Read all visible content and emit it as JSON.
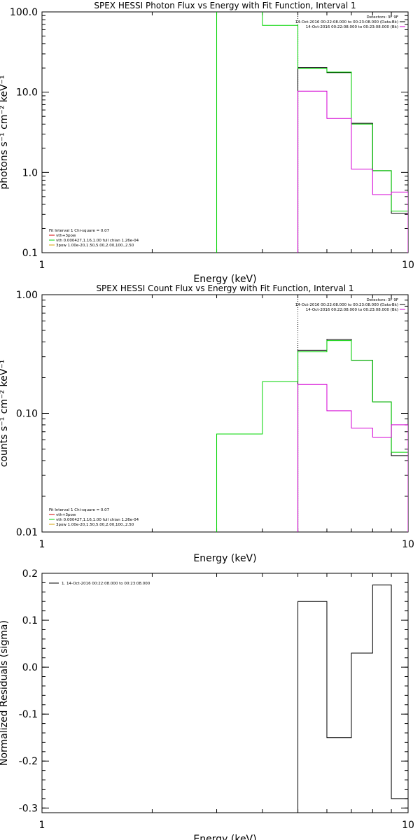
{
  "chart_data": [
    {
      "type": "line",
      "title": "SPEX HESSI Photon Flux vs Energy with Fit Function, Interval 1",
      "xlabel": "Energy (keV)",
      "ylabel": "photons s⁻¹ cm⁻² keV⁻¹",
      "xscale": "log",
      "yscale": "log",
      "xlim": [
        1,
        10
      ],
      "ylim": [
        0.1,
        100
      ],
      "xticks": [
        "1",
        "10"
      ],
      "yticks": [
        "0.1",
        "1.0",
        "10.0",
        "100.0"
      ],
      "info_text": [
        "Detectors: 3F 9F",
        "14-Oct-2016 00:22:08.000 to 00:23:08.000 (Data-Bk)",
        "14-Oct-2016 00:22:08.000 to 00:23:08.000 (Bk)"
      ],
      "fit_text": [
        "Fit Interval 1    Chi-square = 0.07",
        "vth+3pow",
        "vth 0.000427,1.16,1.00   full chian 1.26e-04",
        "3pow 1.00e-20,1.50,5.00,2.00,100.,2.50"
      ],
      "vline_x": 5.0,
      "series": [
        {
          "name": "vth+3pow",
          "color": "#000000",
          "x": [
            3.0,
            4.0,
            5.0,
            6.0,
            7.0,
            8.0,
            9.0,
            10.0
          ],
          "y": [
            null,
            null,
            20.2,
            17.5,
            4.1,
            1.05,
            0.31,
            0.29
          ]
        },
        {
          "name": "vth",
          "color": "#00d400",
          "x": [
            3.0,
            4.0,
            5.0,
            6.0,
            7.0,
            8.0,
            9.0,
            10.0
          ],
          "y": [
            400,
            68,
            19.8,
            17.8,
            4.0,
            1.05,
            0.33,
            0.3
          ]
        },
        {
          "name": "(Bk)",
          "color": "#d400d4",
          "x": [
            3.0,
            4.0,
            5.0,
            6.0,
            7.0,
            8.0,
            9.0,
            10.0
          ],
          "y": [
            null,
            null,
            10.3,
            4.7,
            1.1,
            0.53,
            0.57,
            0.57
          ]
        }
      ]
    },
    {
      "type": "line",
      "title": "SPEX HESSI Count Flux vs Energy with Fit Function, Interval 1",
      "xlabel": "Energy (keV)",
      "ylabel": "counts s⁻¹ cm⁻² keV⁻¹",
      "xscale": "log",
      "yscale": "log",
      "xlim": [
        1,
        10
      ],
      "ylim": [
        0.01,
        1.0
      ],
      "xticks": [
        "1",
        "10"
      ],
      "yticks": [
        "0.01",
        "0.10",
        "1.00"
      ],
      "info_text": [
        "Detectors: 3F 9F",
        "14-Oct-2016 00:22:08.000 to 00:23:08.000 (Data-Bk)",
        "14-Oct-2016 00:22:08.000 to 00:23:08.000 (Bk)"
      ],
      "fit_text": [
        "Fit Interval 1    Chi-square = 0.07",
        "vth+3pow",
        "vth 0.000427,1.16,1.00   full chian 1.26e-04",
        "3pow 1.00e-20,1.50,5.00,2.00,100.,2.50"
      ],
      "vline_x": 5.0,
      "series": [
        {
          "name": "vth+3pow",
          "color": "#000000",
          "x": [
            3.0,
            4.0,
            5.0,
            6.0,
            7.0,
            8.0,
            9.0,
            10.0
          ],
          "y": [
            null,
            null,
            0.34,
            0.42,
            0.28,
            0.125,
            0.044,
            0.044
          ]
        },
        {
          "name": "vth",
          "color": "#00d400",
          "x": [
            3.0,
            4.0,
            5.0,
            6.0,
            7.0,
            8.0,
            9.0,
            10.0
          ],
          "y": [
            0.067,
            0.185,
            0.33,
            0.41,
            0.28,
            0.125,
            0.047,
            0.047
          ]
        },
        {
          "name": "(Bk)",
          "color": "#d400d4",
          "x": [
            3.0,
            4.0,
            5.0,
            6.0,
            7.0,
            8.0,
            9.0,
            10.0
          ],
          "y": [
            null,
            null,
            0.175,
            0.105,
            0.075,
            0.063,
            0.08,
            0.08
          ]
        }
      ]
    },
    {
      "type": "line",
      "title": "",
      "xlabel": "Energy (keV)",
      "ylabel": "Normalized Residuals (sigma)",
      "xscale": "log",
      "yscale": "linear",
      "xlim": [
        1,
        10
      ],
      "ylim": [
        -0.31,
        0.2
      ],
      "xticks": [
        "1",
        "10"
      ],
      "yticks": [
        "-0.3",
        "-0.2",
        "-0.1",
        "0.0",
        "0.1",
        "0.2"
      ],
      "legend": [
        "1. 14-Oct-2016 00:22:08.000 to 00:23:08.000"
      ],
      "series": [
        {
          "name": "1. 14-Oct-2016 00:22:08.000 to 00:23:08.000",
          "color": "#000000",
          "x": [
            5.0,
            6.0,
            7.0,
            8.0,
            9.0,
            10.0
          ],
          "y": [
            0.14,
            -0.15,
            0.03,
            0.175,
            -0.28,
            -0.28
          ]
        }
      ]
    }
  ]
}
